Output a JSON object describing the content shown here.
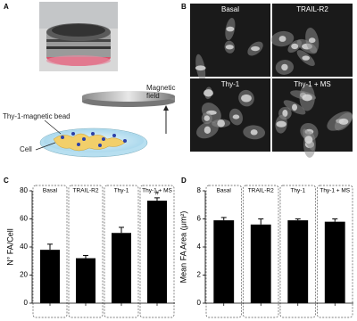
{
  "panels": [
    "A",
    "B",
    "C",
    "D"
  ],
  "diagram": {
    "magnetic_field": "Magnetic field",
    "bead": "Thy-1-magnetic bead",
    "cell": "Cell"
  },
  "micrographs": [
    "Basal",
    "TRAIL-R2",
    "Thy-1",
    "Thy-1 + MS"
  ],
  "chart_data": [
    {
      "type": "bar",
      "y_label": "N° FA/Cell",
      "categories": [
        "Basal",
        "TRAIL-R2",
        "Thy-1",
        "Thy-1 + MS"
      ],
      "values": [
        38,
        32,
        50,
        73
      ],
      "errors": [
        4,
        2,
        4,
        2
      ],
      "color": "#000000",
      "ylim": [
        0,
        80
      ],
      "yticks": [
        0,
        20,
        40,
        60,
        80
      ],
      "annotation": "#"
    },
    {
      "type": "bar",
      "y_label": "Mean FA Area (μm²)",
      "categories": [
        "Basal",
        "TRAIL-R2",
        "Thy-1",
        "Thy-1 + MS"
      ],
      "values": [
        5.9,
        5.6,
        5.9,
        5.8
      ],
      "errors": [
        0.2,
        0.4,
        0.1,
        0.2
      ],
      "color": "#000000",
      "ylim": [
        0,
        8
      ],
      "yticks": [
        0,
        2,
        4,
        6,
        8
      ]
    }
  ]
}
